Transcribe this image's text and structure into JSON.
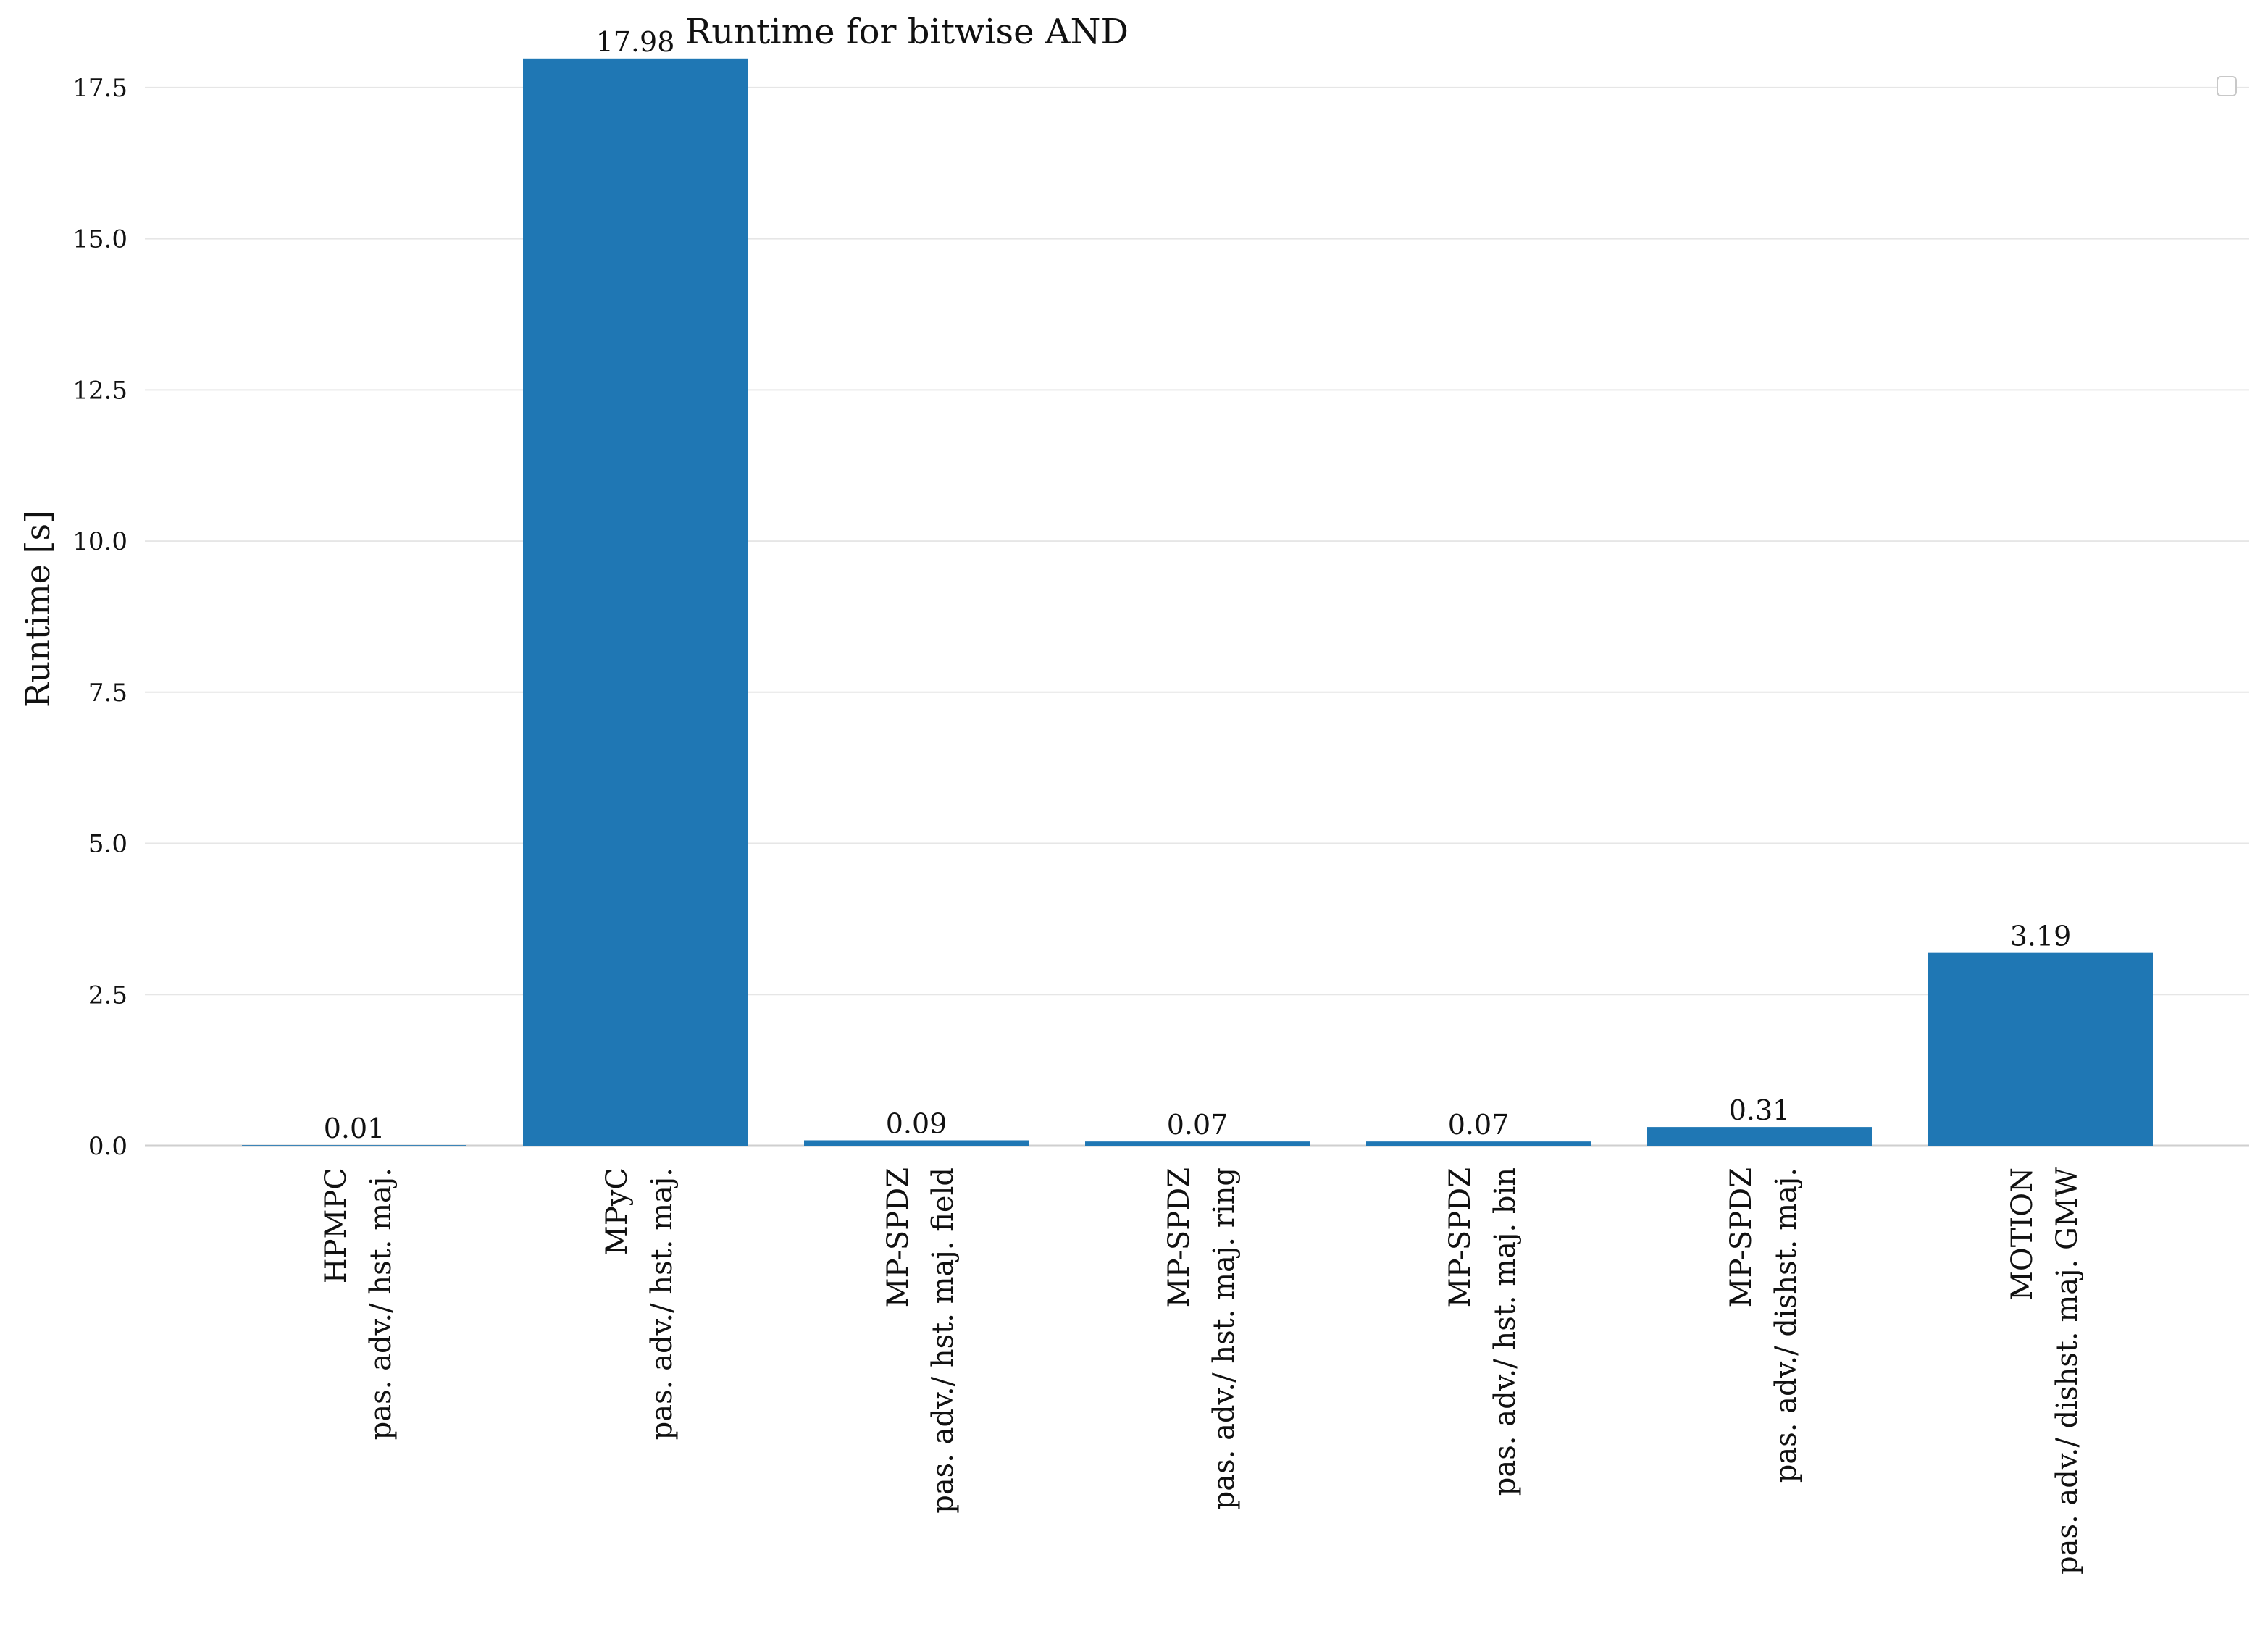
{
  "chart_data": {
    "type": "bar",
    "title": "Runtime for bitwise AND",
    "xlabel": "",
    "ylabel": "Runtime [s]",
    "ylim": [
      0,
      18.9
    ],
    "yticks": [
      "0.0",
      "2.5",
      "5.0",
      "7.5",
      "10.0",
      "12.5",
      "15.0",
      "17.5"
    ],
    "grid": "horizontal",
    "legend": "top-right (empty box)",
    "bar_color": "#1f77b4",
    "categories": [
      {
        "line1": "HPMPC",
        "line2": "pas. adv./ hst. maj."
      },
      {
        "line1": "MPyC",
        "line2": "pas. adv./ hst. maj."
      },
      {
        "line1": "MP-SPDZ",
        "line2": "pas. adv./ hst. maj. field"
      },
      {
        "line1": "MP-SPDZ",
        "line2": "pas. adv./ hst. maj. ring"
      },
      {
        "line1": "MP-SPDZ",
        "line2": "pas. adv./ hst. maj. bin"
      },
      {
        "line1": "MP-SPDZ",
        "line2": "pas. adv./ dishst. maj."
      },
      {
        "line1": "MOTION",
        "line2": "pas. adv./ dishst. maj. GMW"
      }
    ],
    "values": [
      0.01,
      17.98,
      0.09,
      0.07,
      0.07,
      0.31,
      3.19
    ],
    "data_labels": [
      "0.01",
      "17.98",
      "0.09",
      "0.07",
      "0.07",
      "0.31",
      "3.19"
    ]
  }
}
